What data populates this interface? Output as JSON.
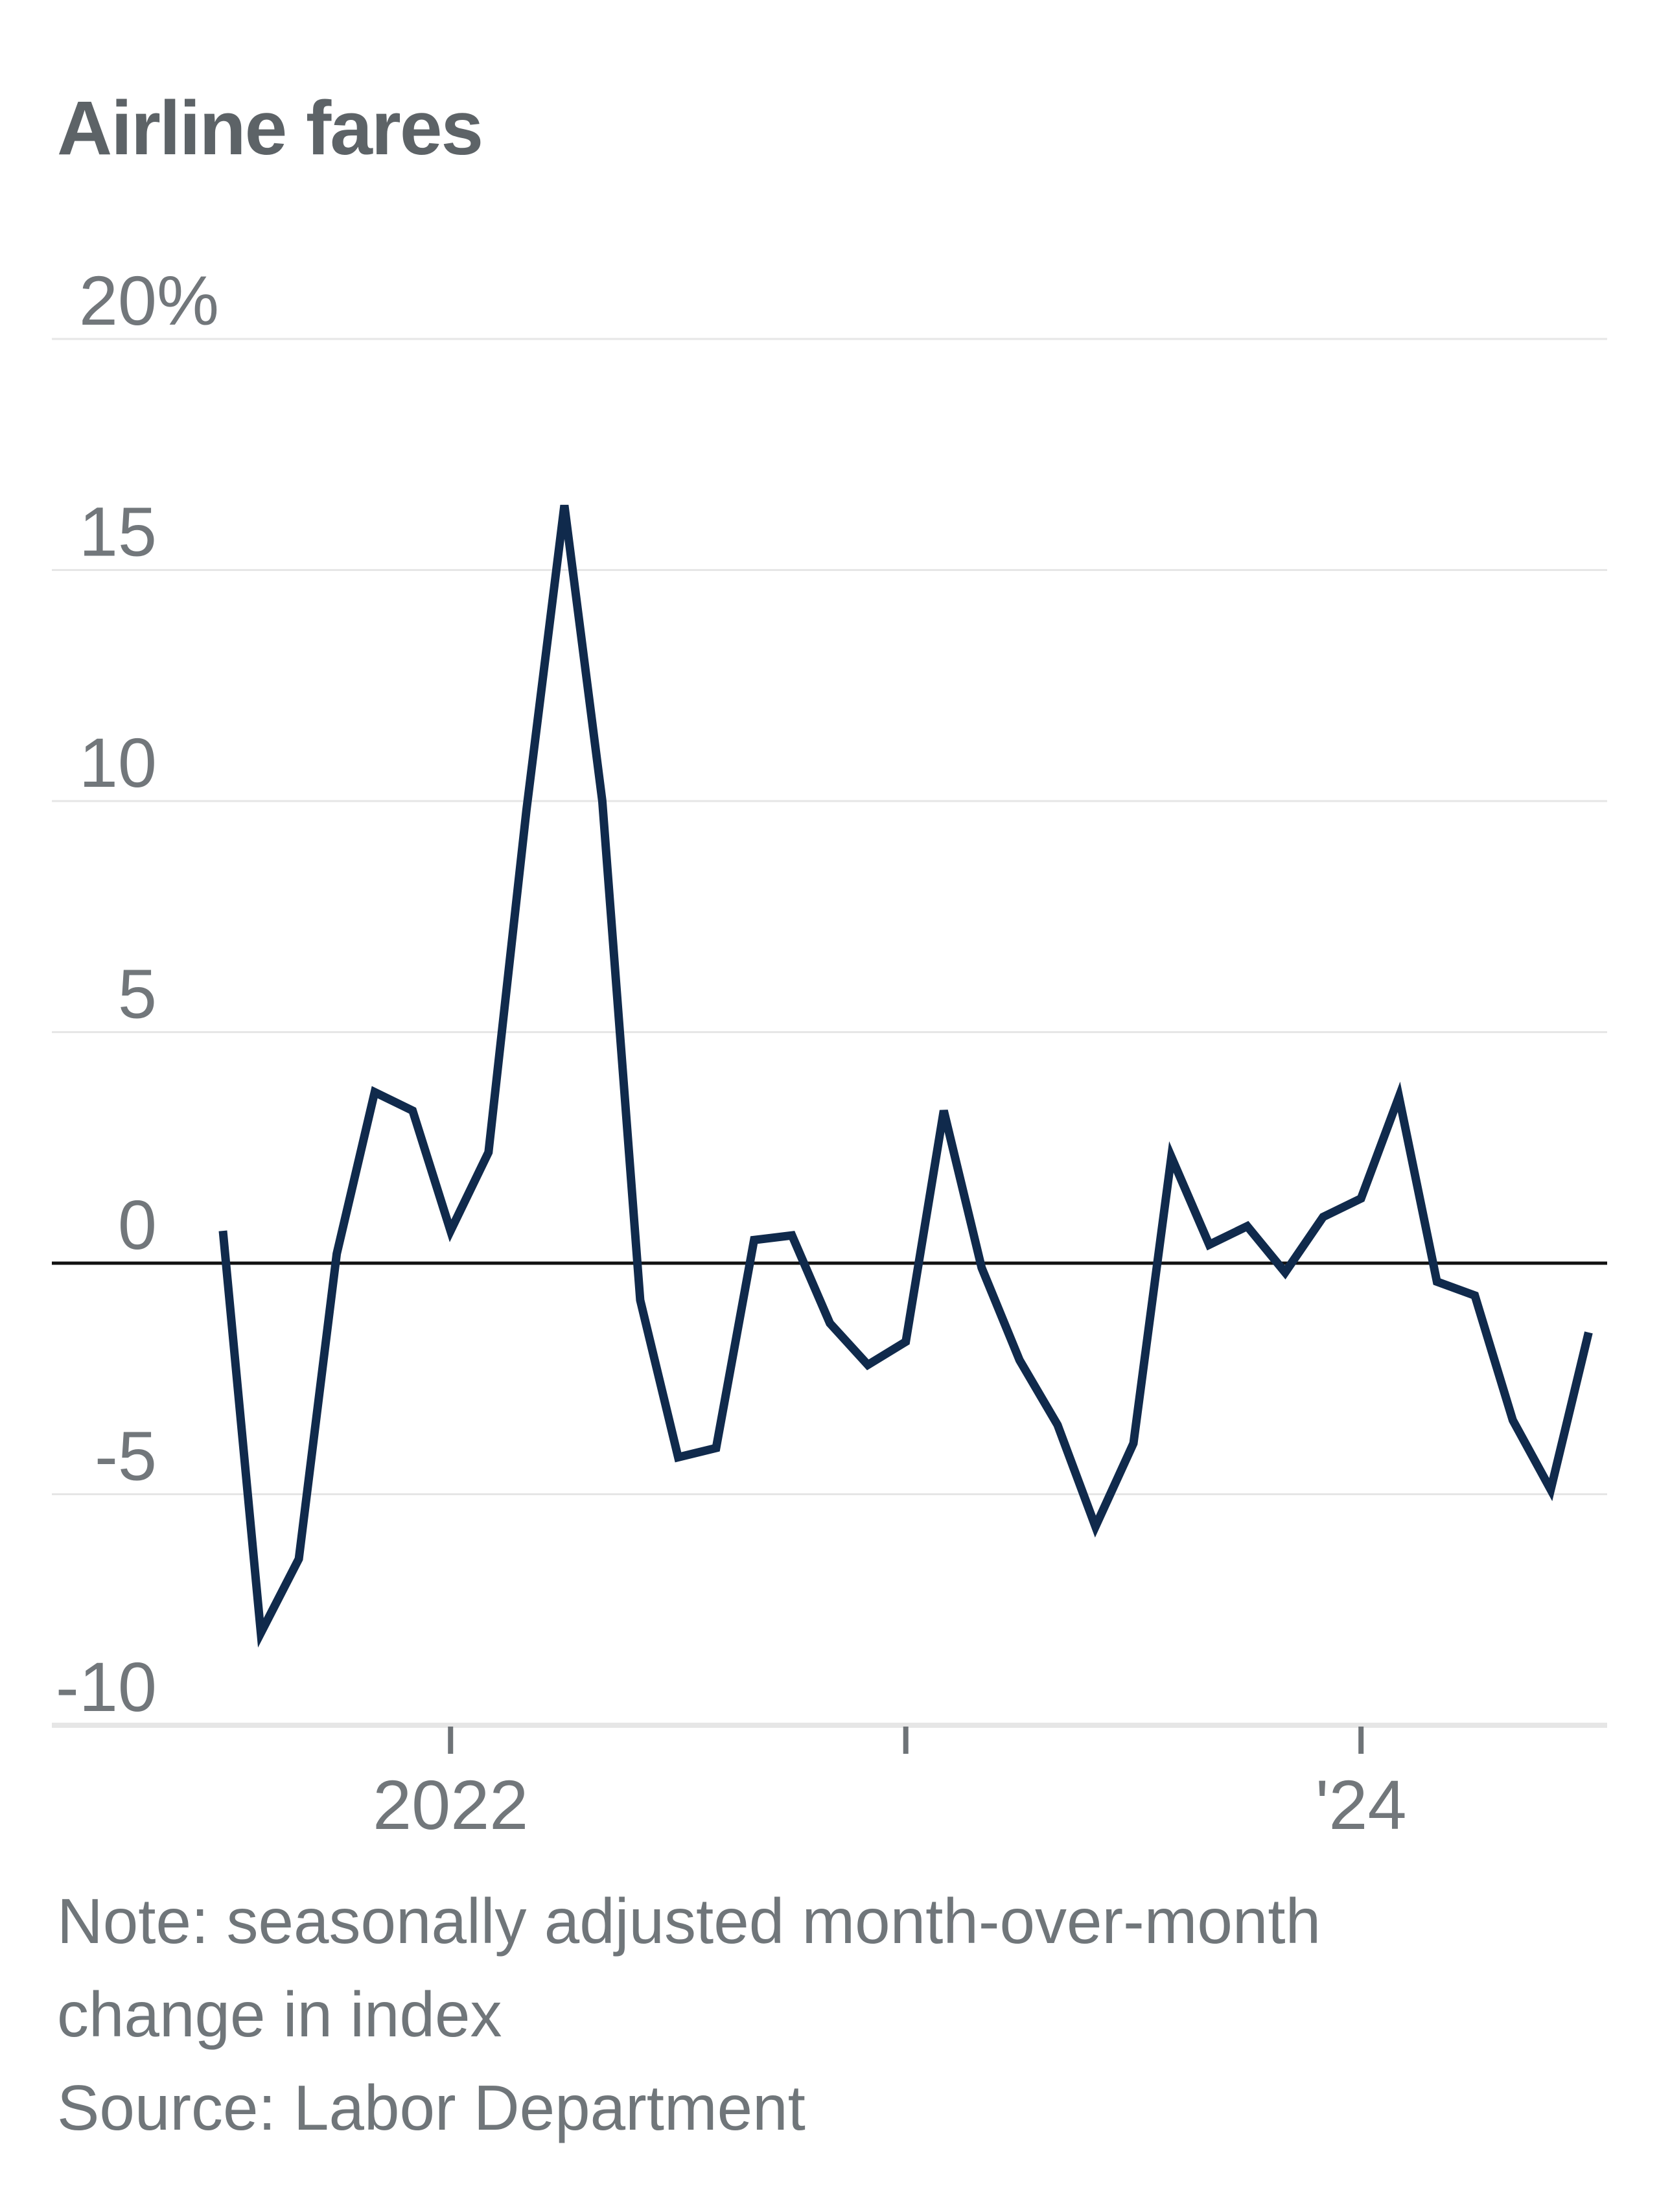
{
  "title": "Airline fares",
  "note": {
    "line1": "Note: seasonally adjusted month-over-month",
    "line2": "change in index"
  },
  "source": "Source: Labor Department",
  "chart_data": {
    "type": "line",
    "title": "Airline fares",
    "xlabel": "",
    "ylabel": "seasonally adjusted month-over-month change in index (%)",
    "ylim": [
      -10,
      20
    ],
    "grid": "on",
    "legend": "none",
    "x": [
      "2021-07",
      "2021-08",
      "2021-09",
      "2021-10",
      "2021-11",
      "2021-12",
      "2022-01",
      "2022-02",
      "2022-03",
      "2022-04",
      "2022-05",
      "2022-06",
      "2022-07",
      "2022-08",
      "2022-09",
      "2022-10",
      "2022-11",
      "2022-12",
      "2023-01",
      "2023-02",
      "2023-03",
      "2023-04",
      "2023-05",
      "2023-06",
      "2023-07",
      "2023-08",
      "2023-09",
      "2023-10",
      "2023-11",
      "2023-12",
      "2024-01",
      "2024-02",
      "2024-03",
      "2024-04",
      "2024-05",
      "2024-06",
      "2024-07"
    ],
    "series": [
      {
        "name": "Airline fares m/m % change",
        "values": [
          0.7,
          -8.0,
          -6.4,
          0.2,
          3.7,
          3.3,
          0.7,
          2.4,
          9.8,
          16.4,
          10.0,
          -0.8,
          -4.2,
          -4.0,
          0.5,
          0.6,
          -1.3,
          -2.2,
          -1.7,
          3.3,
          -0.1,
          -2.1,
          -3.5,
          -5.7,
          -3.9,
          2.3,
          0.4,
          0.8,
          -0.2,
          1.0,
          1.4,
          3.6,
          -0.4,
          -0.7,
          -3.4,
          -4.9,
          -1.5
        ]
      }
    ],
    "yticks": [
      {
        "value": 20,
        "label": "20",
        "suffix": "%"
      },
      {
        "value": 15,
        "label": "15"
      },
      {
        "value": 10,
        "label": "10"
      },
      {
        "value": 5,
        "label": "5"
      },
      {
        "value": 0,
        "label": "0"
      },
      {
        "value": -5,
        "label": "-5"
      },
      {
        "value": -10,
        "label": "-10"
      }
    ],
    "xticks": [
      {
        "month_index": 6,
        "label": "2022"
      },
      {
        "month_index": 18,
        "label": ""
      },
      {
        "month_index": 30,
        "label": "'24"
      }
    ],
    "colors": {
      "line": "#102a4c",
      "grid": "#e6e6e6",
      "zero_line": "#111111",
      "axis_tick": "#6e7377",
      "label_text": "#72777b"
    }
  }
}
